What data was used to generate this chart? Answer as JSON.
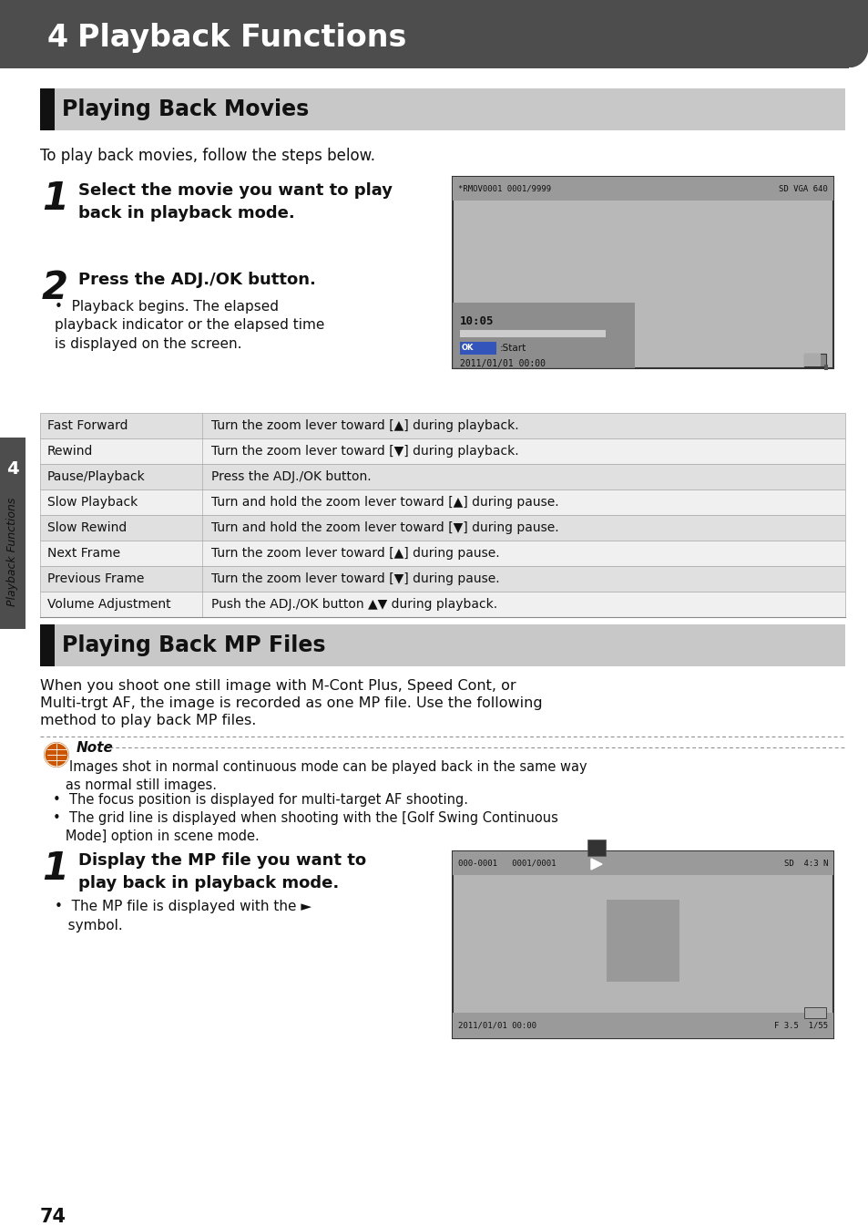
{
  "page_bg": "#ffffff",
  "header_bg": "#4d4d4d",
  "header_text_color": "#ffffff",
  "header_num": "4",
  "header_title": "Playback Functions",
  "section1_title": "Playing Back Movies",
  "section_bg": "#c8c8c8",
  "section_accent": "#111111",
  "intro1": "To play back movies, follow the steps below.",
  "step1_text": "Select the movie you want to play\nback in playback mode.",
  "step2_text": "Press the ADJ./OK button.",
  "step2_bullet": "Playback begins. The elapsed\nplayback indicator or the elapsed time\nis displayed on the screen.",
  "cam1_top_left": "*RMOV0001 0001/9999",
  "cam1_top_right": "SD VGA 640",
  "cam1_time": "10:05",
  "cam1_ok": "OK :Start",
  "cam1_date": "2011/01/01 00:00",
  "table_rows": [
    [
      "Fast Forward",
      "Turn the zoom lever toward [▲] during playback."
    ],
    [
      "Rewind",
      "Turn the zoom lever toward [▼] during playback."
    ],
    [
      "Pause/Playback",
      "Press the ADJ./OK button."
    ],
    [
      "Slow Playback",
      "Turn and hold the zoom lever toward [▲] during pause."
    ],
    [
      "Slow Rewind",
      "Turn and hold the zoom lever toward [▼] during pause."
    ],
    [
      "Next Frame",
      "Turn the zoom lever toward [▲] during pause."
    ],
    [
      "Previous Frame",
      "Turn the zoom lever toward [▼] during pause."
    ],
    [
      "Volume Adjustment",
      "Push the ADJ./OK button ▲▼ during playback."
    ]
  ],
  "section2_title": "Playing Back MP Files",
  "intro2_line1": "When you shoot one still image with M-Cont Plus, Speed Cont, or",
  "intro2_line2": "Multi-trgt AF, the image is recorded as one MP file. Use the following",
  "intro2_line3": "method to play back MP files.",
  "note_label": "Note",
  "note_b1": "•  Images shot in normal continuous mode can be played back in the same way\n   as normal still images.",
  "note_b2": "•  The focus position is displayed for multi-target AF shooting.",
  "note_b3": "•  The grid line is displayed when shooting with the [Golf Swing Continuous\n   Mode] option in scene mode.",
  "step3_text": "Display the MP file you want to\nplay back in playback mode.",
  "step3_bullet": "•  The MP file is displayed with the ►\n   symbol.",
  "cam2_top_left": "000-0001   0001/0001",
  "cam2_top_right": "SD  4:3 N",
  "cam2_date": "2011/01/01 00:00",
  "cam2_right": "F 3.5  1/55",
  "sidebar_num": "4",
  "sidebar_label": "Playback Functions",
  "page_num": "74",
  "text_color": "#111111",
  "gray_text": "#444444"
}
